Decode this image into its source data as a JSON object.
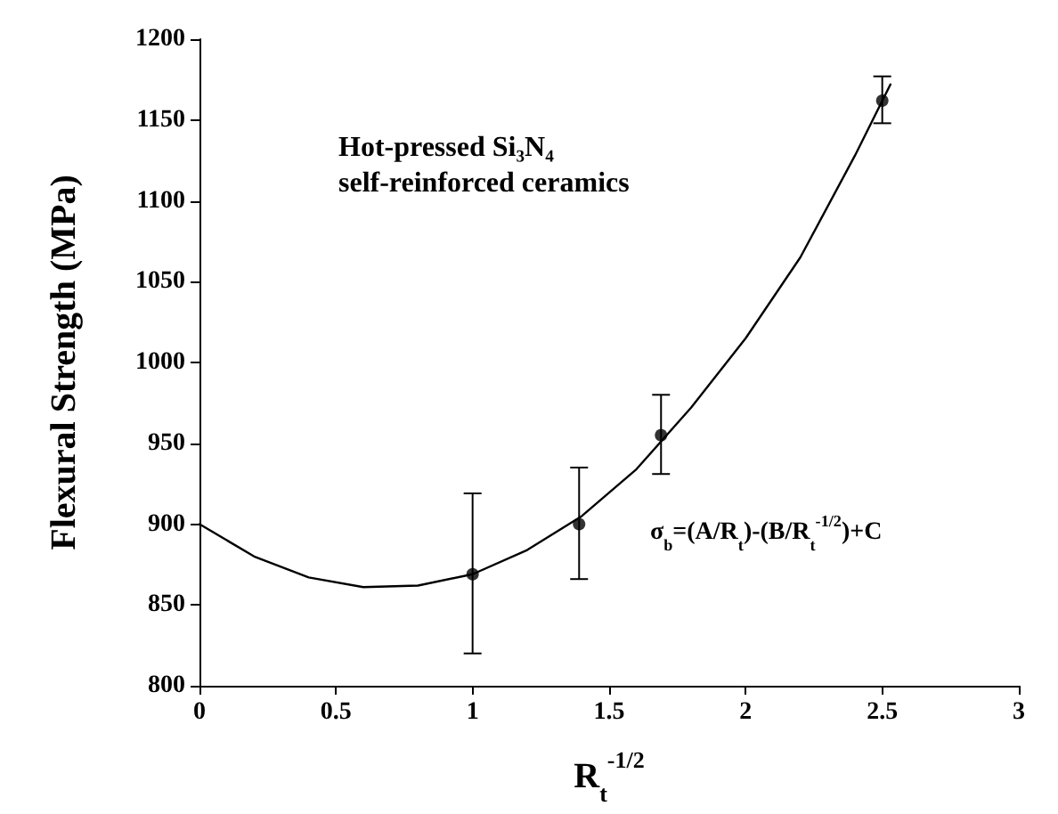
{
  "chart_data": {
    "type": "scatter",
    "xlabel": "R$_{t}$$^{-1/2}$",
    "ylabel": "Flexural Strength (MPa)",
    "annotations": [
      "Hot-pressed Si₃N₄",
      "self-reinforced ceramics",
      "σ$_{b}$=(A/R$_{t}$)-(B/R$_{t}$$^{-1/2}$)+C"
    ],
    "xlim": [
      0,
      3
    ],
    "xticks": [
      0,
      0.5,
      1,
      1.5,
      2,
      2.5,
      3
    ],
    "ylim": [
      800,
      1200
    ],
    "yticks": [
      800,
      850,
      900,
      950,
      1000,
      1050,
      1100,
      1150,
      1200
    ],
    "grid": false,
    "series": [
      {
        "color": "#000000",
        "marker": "circle",
        "x": [
          1,
          1.39,
          1.69,
          2.5
        ],
        "values": [
          869,
          900,
          955,
          1162
        ],
        "errors": [
          [
            820,
            919
          ],
          [
            866,
            935
          ],
          [
            931,
            980
          ],
          [
            1148,
            1177
          ]
        ]
      },
      {
        "type": "line",
        "color": "#000000",
        "marker": "none",
        "line_style": "solid",
        "x": [
          0,
          0.2,
          0.4,
          0.6,
          0.8,
          1.0,
          1.2,
          1.4,
          1.6,
          1.8,
          2.0,
          2.2,
          2.4,
          2.53
        ],
        "values": [
          900,
          880,
          867,
          861,
          862,
          869,
          884,
          905,
          934,
          972,
          1015,
          1065,
          1128,
          1172
        ]
      }
    ]
  }
}
